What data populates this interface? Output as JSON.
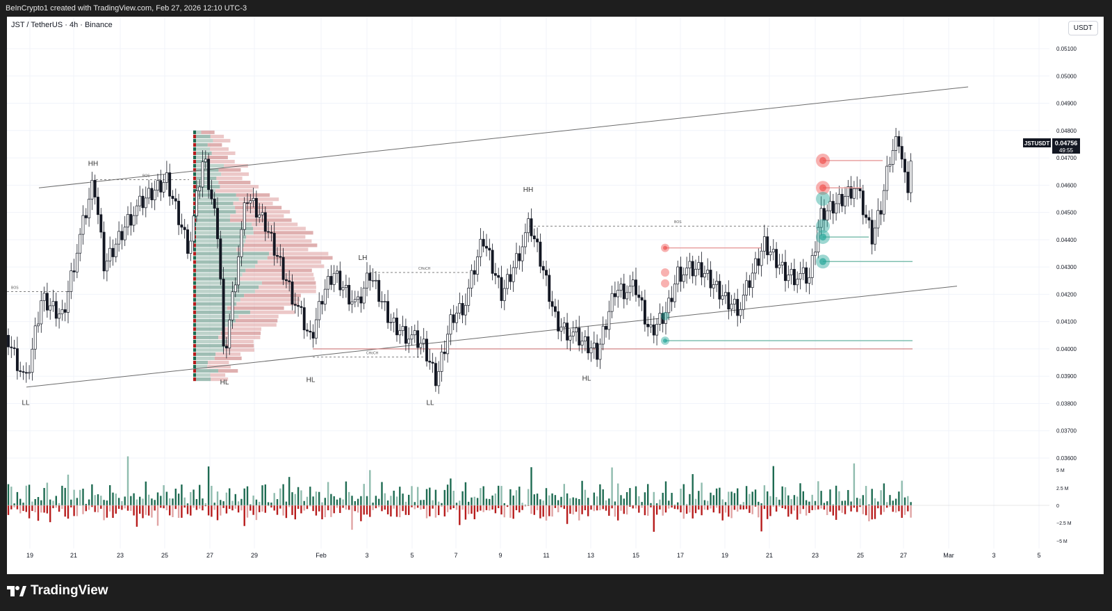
{
  "header": {
    "attribution": "BeInCrypto1 created with TradingView.com, Feb 27, 2026 12:10 UTC-3"
  },
  "chart": {
    "symbol_title": "JST / TetherUS · 4h · Binance",
    "currency": "USDT",
    "last_price_tag": {
      "symbol": "JSTUSDT",
      "price": "0.04756",
      "countdown": "49:55"
    }
  },
  "colors": {
    "up": "#1e6b52",
    "down": "#b71c1c",
    "up_zone": "#26a69a",
    "down_zone": "#ef5350",
    "text": "#131722"
  },
  "chart_data": {
    "type": "candlestick",
    "price_axis": {
      "ticks": [
        "0.05100",
        "0.05000",
        "0.04900",
        "0.04800",
        "0.04700",
        "0.04600",
        "0.04500",
        "0.04400",
        "0.04300",
        "0.04200",
        "0.04100",
        "0.04000",
        "0.03900",
        "0.03800",
        "0.03700",
        "0.03600"
      ],
      "range": [
        0.0357,
        0.0523
      ]
    },
    "volume_axis": {
      "ticks": [
        "5 M",
        "2.5 M",
        "0",
        "−2.5 M",
        "−5 M"
      ]
    },
    "time_axis": {
      "ticks": [
        "19",
        "21",
        "23",
        "25",
        "27",
        "29",
        "Feb",
        "3",
        "5",
        "7",
        "9",
        "11",
        "13",
        "15",
        "17",
        "19",
        "21",
        "23",
        "25",
        "27",
        "Mar",
        "3",
        "5"
      ]
    },
    "structure_labels": [
      {
        "text": "HH",
        "t": "Jan 21",
        "price": 0.0465
      },
      {
        "text": "LL",
        "t": "Jan 19",
        "price": 0.0383
      },
      {
        "text": "HL",
        "t": "Jan 27",
        "price": 0.039
      },
      {
        "text": "HL",
        "t": "Feb 1",
        "price": 0.0391
      },
      {
        "text": "LH",
        "t": "Feb 3",
        "price": 0.043
      },
      {
        "text": "LL",
        "t": "Feb 6",
        "price": 0.0383
      },
      {
        "text": "HH",
        "t": "Feb 10",
        "price": 0.0455
      },
      {
        "text": "HL",
        "t": "Feb 13",
        "price": 0.0392
      }
    ],
    "event_labels": [
      {
        "text": "BOS",
        "level": 0.0462
      },
      {
        "text": "BOS",
        "level": 0.0421
      },
      {
        "text": "CHoCH",
        "level": 0.0428
      },
      {
        "text": "CHoCH",
        "level": 0.0397
      },
      {
        "text": "BOS",
        "level": 0.0445
      }
    ],
    "channel": {
      "upper": [
        0.0459,
        0.0496
      ],
      "lower": [
        0.0386,
        0.0423
      ]
    },
    "zones": [
      {
        "type": "supply",
        "price": 0.0469
      },
      {
        "type": "supply",
        "price": 0.0459
      },
      {
        "type": "supply",
        "price": 0.0437
      },
      {
        "type": "demand",
        "price": 0.0432
      },
      {
        "type": "demand",
        "price": 0.0441
      },
      {
        "type": "demand",
        "price": 0.0403
      },
      {
        "type": "support",
        "price": 0.04
      }
    ],
    "last_price": 0.04756,
    "volume_profile": {
      "anchor": "Jan 26",
      "range": [
        0.0388,
        0.048
      ]
    }
  }
}
